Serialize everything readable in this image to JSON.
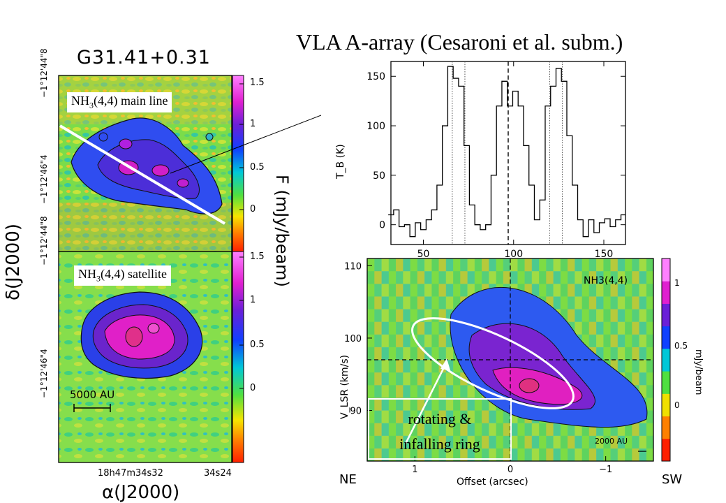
{
  "slide_title": "VLA A-array (Cesaroni et al. subm.)",
  "map_panel": {
    "source_name": "G31.41+0.31",
    "top_label_prefix": "NH",
    "top_label_sub": "3",
    "top_label_suffix": "(4,4) main line",
    "bottom_label_prefix": "NH",
    "bottom_label_sub": "3",
    "bottom_label_suffix": "(4,4) satellite",
    "y_axis_label": "δ(J2000)",
    "x_axis_label": "α(J2000)",
    "colorbar_label": "F  (mJy/beam)",
    "colorbar_ticks_top": [
      "1.5",
      "1",
      "0.5",
      "0"
    ],
    "colorbar_ticks_bottom": [
      "1.5",
      "1",
      "0.5",
      "0"
    ],
    "dec_ticks_top": [
      "−1°12'44\"8",
      "−1°12'46\"4"
    ],
    "dec_ticks_bottom": [
      "−1°12'44\"8",
      "−1°12'46\"4"
    ],
    "ra_ticks": [
      "18h47m34s32",
      "34s24"
    ],
    "scale_bar_label": "5000 AU"
  },
  "chart_data": [
    {
      "type": "line",
      "xlabel": "",
      "ylabel": "T_B (K)",
      "xlim": [
        32,
        162
      ],
      "ylim": [
        -20,
        165
      ],
      "x_ticks": [
        50,
        100,
        150
      ],
      "y_ticks": [
        0,
        50,
        100,
        150
      ],
      "dashed_x": [
        97
      ],
      "dotted_x": [
        66,
        73,
        120,
        127
      ],
      "series": [
        {
          "x": [
            32,
            35,
            38,
            41,
            44,
            47,
            50,
            53,
            56,
            59,
            62,
            65,
            68,
            71,
            74,
            77,
            80,
            83,
            86,
            89,
            92,
            95,
            98,
            101,
            104,
            107,
            110,
            113,
            116,
            119,
            122,
            125,
            128,
            131,
            134,
            137,
            140,
            143,
            146,
            149,
            152,
            155,
            158,
            161
          ],
          "values": [
            10,
            15,
            -2,
            0,
            -12,
            2,
            -5,
            5,
            15,
            40,
            100,
            160,
            148,
            140,
            80,
            20,
            0,
            -5,
            0,
            50,
            120,
            145,
            120,
            135,
            120,
            80,
            40,
            5,
            25,
            120,
            140,
            158,
            145,
            90,
            40,
            5,
            -12,
            5,
            -8,
            2,
            6,
            -2,
            5,
            10
          ]
        }
      ]
    },
    {
      "type": "heatmap",
      "xlabel": "Offset (arcsec)",
      "ylabel": "V_LSR (km/s)",
      "xlim": [
        1.5,
        -1.5
      ],
      "ylim": [
        83,
        111
      ],
      "x_ticks": [
        1,
        0,
        -1
      ],
      "y_ticks": [
        90,
        100,
        110
      ],
      "colorbar_label": "mJy/beam",
      "colorbar_ticks": [
        "1",
        "0.5",
        "0"
      ],
      "annotation_line": "NH3(4,4)",
      "left_label": "NE",
      "right_label": "SW",
      "scale_bar_label": "2000 AU",
      "dashed_v": 97
    }
  ],
  "annotations": {
    "ring_text_line1": "rotating &",
    "ring_text_line2": "infalling ring"
  },
  "colors": {
    "background_map": "#55dd55",
    "emission_core": "#ee22cc",
    "emission_mid": "#5533ee",
    "outline_white": "#ffffff"
  }
}
